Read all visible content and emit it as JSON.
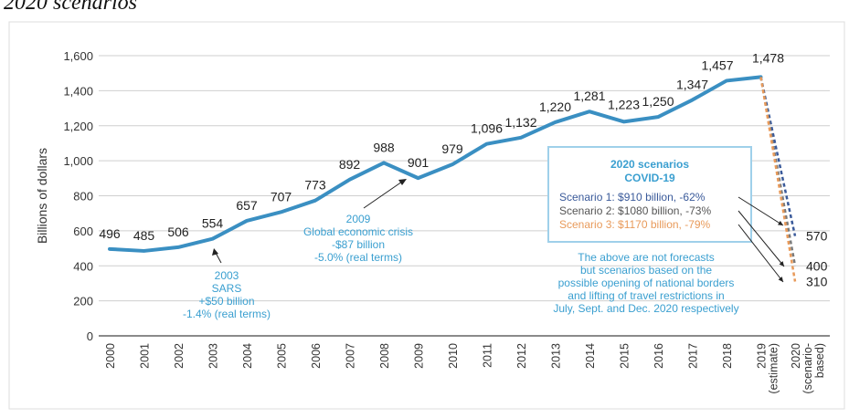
{
  "page": {
    "title": "2020 scenarios"
  },
  "chart_data": {
    "type": "line",
    "title": "",
    "ylabel": "Billions of dollars",
    "xlabel": "",
    "ylim": [
      0,
      1600
    ],
    "yticks": [
      0,
      200,
      400,
      600,
      800,
      1000,
      1200,
      1400,
      1600
    ],
    "ytick_labels": [
      "0",
      "200",
      "400",
      "600",
      "800",
      "1,000",
      "1,200",
      "1,400",
      "1,600"
    ],
    "x_labels": [
      "2000",
      "2001",
      "2002",
      "2003",
      "2004",
      "2005",
      "2006",
      "2007",
      "2008",
      "2009",
      "2010",
      "2011",
      "2012",
      "2013",
      "2014",
      "2015",
      "2016",
      "2017",
      "2018",
      "2019\n(estimate)",
      "2020\n(scenario-\nbased)"
    ],
    "series": [
      {
        "values": [
          496,
          485,
          506,
          554,
          657,
          707,
          773,
          892,
          988,
          901,
          979,
          1096,
          1132,
          1220,
          1281,
          1223,
          1250,
          1347,
          1457,
          1478
        ],
        "labels": [
          "496",
          "485",
          "506",
          "554",
          "657",
          "707",
          "773",
          "892",
          "988",
          "901",
          "979",
          "1,096",
          "1,132",
          "1,220",
          "1,281",
          "1,223",
          "1,250",
          "1,347",
          "1,457",
          "1,478"
        ],
        "color": "#3a8fc2"
      }
    ],
    "scenarios": [
      {
        "value": 570,
        "label": "570",
        "color": "#3a5a9a"
      },
      {
        "value": 400,
        "label": "400",
        "color": "#7a7a7a"
      },
      {
        "value": 310,
        "label": "310",
        "color": "#e89a5a"
      }
    ],
    "grid": true,
    "annotations": {
      "sars": [
        "2003",
        "SARS",
        "+$50 billion",
        "-1.4% (real terms)"
      ],
      "crisis": [
        "2009",
        "Global economic crisis",
        "-$87 billion",
        "-5.0% (real terms)"
      ]
    },
    "legend_box": {
      "title": [
        "2020 scenarios",
        "COVID-19"
      ],
      "items": [
        {
          "text": "Scenario 1: $910 billion, -62%",
          "color": "#3a5a9a"
        },
        {
          "text": "Scenario 2: $1080 billion, -73%",
          "color": "#555555"
        },
        {
          "text": "Scenario 3: $1170 billion, -79%",
          "color": "#e89a5a"
        }
      ],
      "border_color": "#9fd0ea",
      "title_color": "#3a9fd0"
    },
    "note": [
      "The above are not forecasts",
      "but scenarios based on the",
      "possible opening of national borders",
      "and lifting of travel restrictions in",
      "July, Sept. and Dec. 2020 respectively"
    ],
    "colors": {
      "line": "#3a8fc2",
      "annotation": "#3a9fd0",
      "grid": "#cfcfcf",
      "axis": "#444444"
    }
  }
}
